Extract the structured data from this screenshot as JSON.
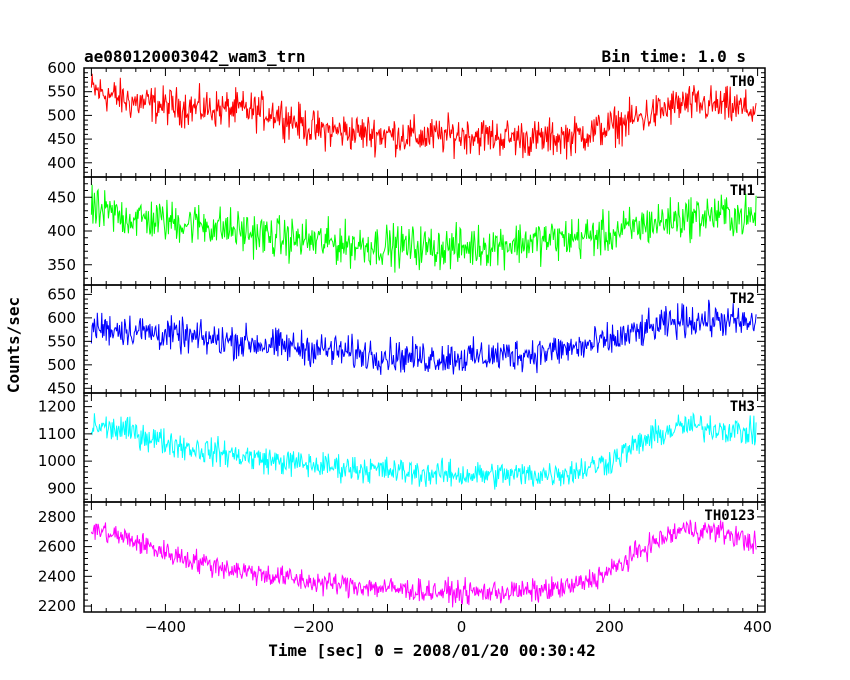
{
  "header": {
    "title": "ae080120003042_wam3_trn",
    "bin_time": "Bin time: 1.0 s"
  },
  "xlabel": "Time [sec] 0 = 2008/01/20 00:30:42",
  "ylabel": "Counts/sec",
  "chart_data": [
    {
      "type": "line",
      "name": "TH0",
      "color": "#ff0000",
      "xlim": [
        -510,
        410
      ],
      "ylim": [
        370,
        600
      ],
      "yticks": [
        400,
        450,
        500,
        550,
        600
      ],
      "yticklabels": [
        "400",
        "450",
        "500",
        "550",
        "600"
      ],
      "x": [
        -500,
        -450,
        -400,
        -350,
        -300,
        -250,
        -200,
        -150,
        -100,
        -50,
        0,
        50,
        100,
        150,
        200,
        250,
        300,
        350,
        400
      ],
      "y": [
        555,
        530,
        520,
        515,
        512,
        505,
        470,
        465,
        460,
        455,
        460,
        455,
        450,
        455,
        475,
        500,
        525,
        520,
        510
      ],
      "noise": 28
    },
    {
      "type": "line",
      "name": "TH1",
      "color": "#00ff00",
      "xlim": [
        -510,
        410
      ],
      "ylim": [
        320,
        480
      ],
      "yticks": [
        350,
        400,
        450
      ],
      "yticklabels": [
        "350",
        "400",
        "450"
      ],
      "x": [
        -500,
        -450,
        -400,
        -350,
        -300,
        -250,
        -200,
        -150,
        -100,
        -50,
        0,
        50,
        100,
        150,
        200,
        250,
        300,
        350,
        400
      ],
      "y": [
        430,
        420,
        415,
        410,
        400,
        390,
        385,
        380,
        378,
        376,
        375,
        380,
        385,
        390,
        395,
        410,
        420,
        425,
        418
      ],
      "noise": 22
    },
    {
      "type": "line",
      "name": "TH2",
      "color": "#0000ff",
      "xlim": [
        -510,
        410
      ],
      "ylim": [
        440,
        670
      ],
      "yticks": [
        450,
        500,
        550,
        600,
        650
      ],
      "yticklabels": [
        "450",
        "500",
        "550",
        "600",
        "650"
      ],
      "x": [
        -500,
        -450,
        -400,
        -350,
        -300,
        -250,
        -200,
        -150,
        -100,
        -50,
        0,
        50,
        100,
        150,
        200,
        250,
        300,
        350,
        400
      ],
      "y": [
        580,
        575,
        565,
        555,
        550,
        540,
        535,
        525,
        520,
        515,
        515,
        520,
        525,
        535,
        550,
        575,
        595,
        595,
        585
      ],
      "noise": 25
    },
    {
      "type": "line",
      "name": "TH3",
      "color": "#00ffff",
      "xlim": [
        -510,
        410
      ],
      "ylim": [
        850,
        1250
      ],
      "yticks": [
        900,
        1000,
        1100,
        1200
      ],
      "yticklabels": [
        "900",
        "1000",
        "1100",
        "1200"
      ],
      "x": [
        -500,
        -450,
        -400,
        -350,
        -300,
        -250,
        -200,
        -150,
        -100,
        -50,
        0,
        50,
        100,
        150,
        200,
        250,
        300,
        350,
        400
      ],
      "y": [
        1130,
        1110,
        1070,
        1040,
        1020,
        1000,
        985,
        975,
        965,
        955,
        950,
        950,
        950,
        960,
        1000,
        1080,
        1130,
        1120,
        1100
      ],
      "noise": 35
    },
    {
      "type": "line",
      "name": "TH0123",
      "color": "#ff00ff",
      "xlim": [
        -510,
        410
      ],
      "ylim": [
        2160,
        2900
      ],
      "yticks": [
        2200,
        2400,
        2600,
        2800
      ],
      "yticklabels": [
        "2200",
        "2400",
        "2600",
        "2800"
      ],
      "xticks": [
        -400,
        -200,
        0,
        200,
        400
      ],
      "xticklabels": [
        "−400",
        "−200",
        "0",
        "200",
        "400"
      ],
      "x": [
        -500,
        -450,
        -400,
        -350,
        -300,
        -250,
        -200,
        -150,
        -100,
        -50,
        0,
        50,
        100,
        150,
        200,
        250,
        300,
        350,
        400
      ],
      "y": [
        2720,
        2650,
        2560,
        2490,
        2440,
        2400,
        2360,
        2340,
        2320,
        2300,
        2290,
        2295,
        2300,
        2330,
        2430,
        2600,
        2720,
        2700,
        2620
      ],
      "noise": 55
    }
  ]
}
